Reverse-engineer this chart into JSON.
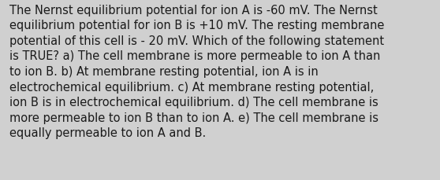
{
  "lines": [
    "The Nernst equilibrium potential for ion A is -60 mV. The Nernst",
    "equilibrium potential for ion B is +10 mV. The resting membrane",
    "potential of this cell is - 20 mV. Which of the following statement",
    "is TRUE? a) The cell membrane is more permeable to ion A than",
    "to ion B. b) At membrane resting potential, ion A is in",
    "electrochemical equilibrium. c) At membrane resting potential,",
    "ion B is in electrochemical equilibrium. d) The cell membrane is",
    "more permeable to ion B than to ion A. e) The cell membrane is",
    "equally permeable to ion A and B."
  ],
  "background_color": "#d0d0d0",
  "text_color": "#1a1a1a",
  "font_size": 10.5,
  "fig_width": 5.58,
  "fig_height": 2.3
}
